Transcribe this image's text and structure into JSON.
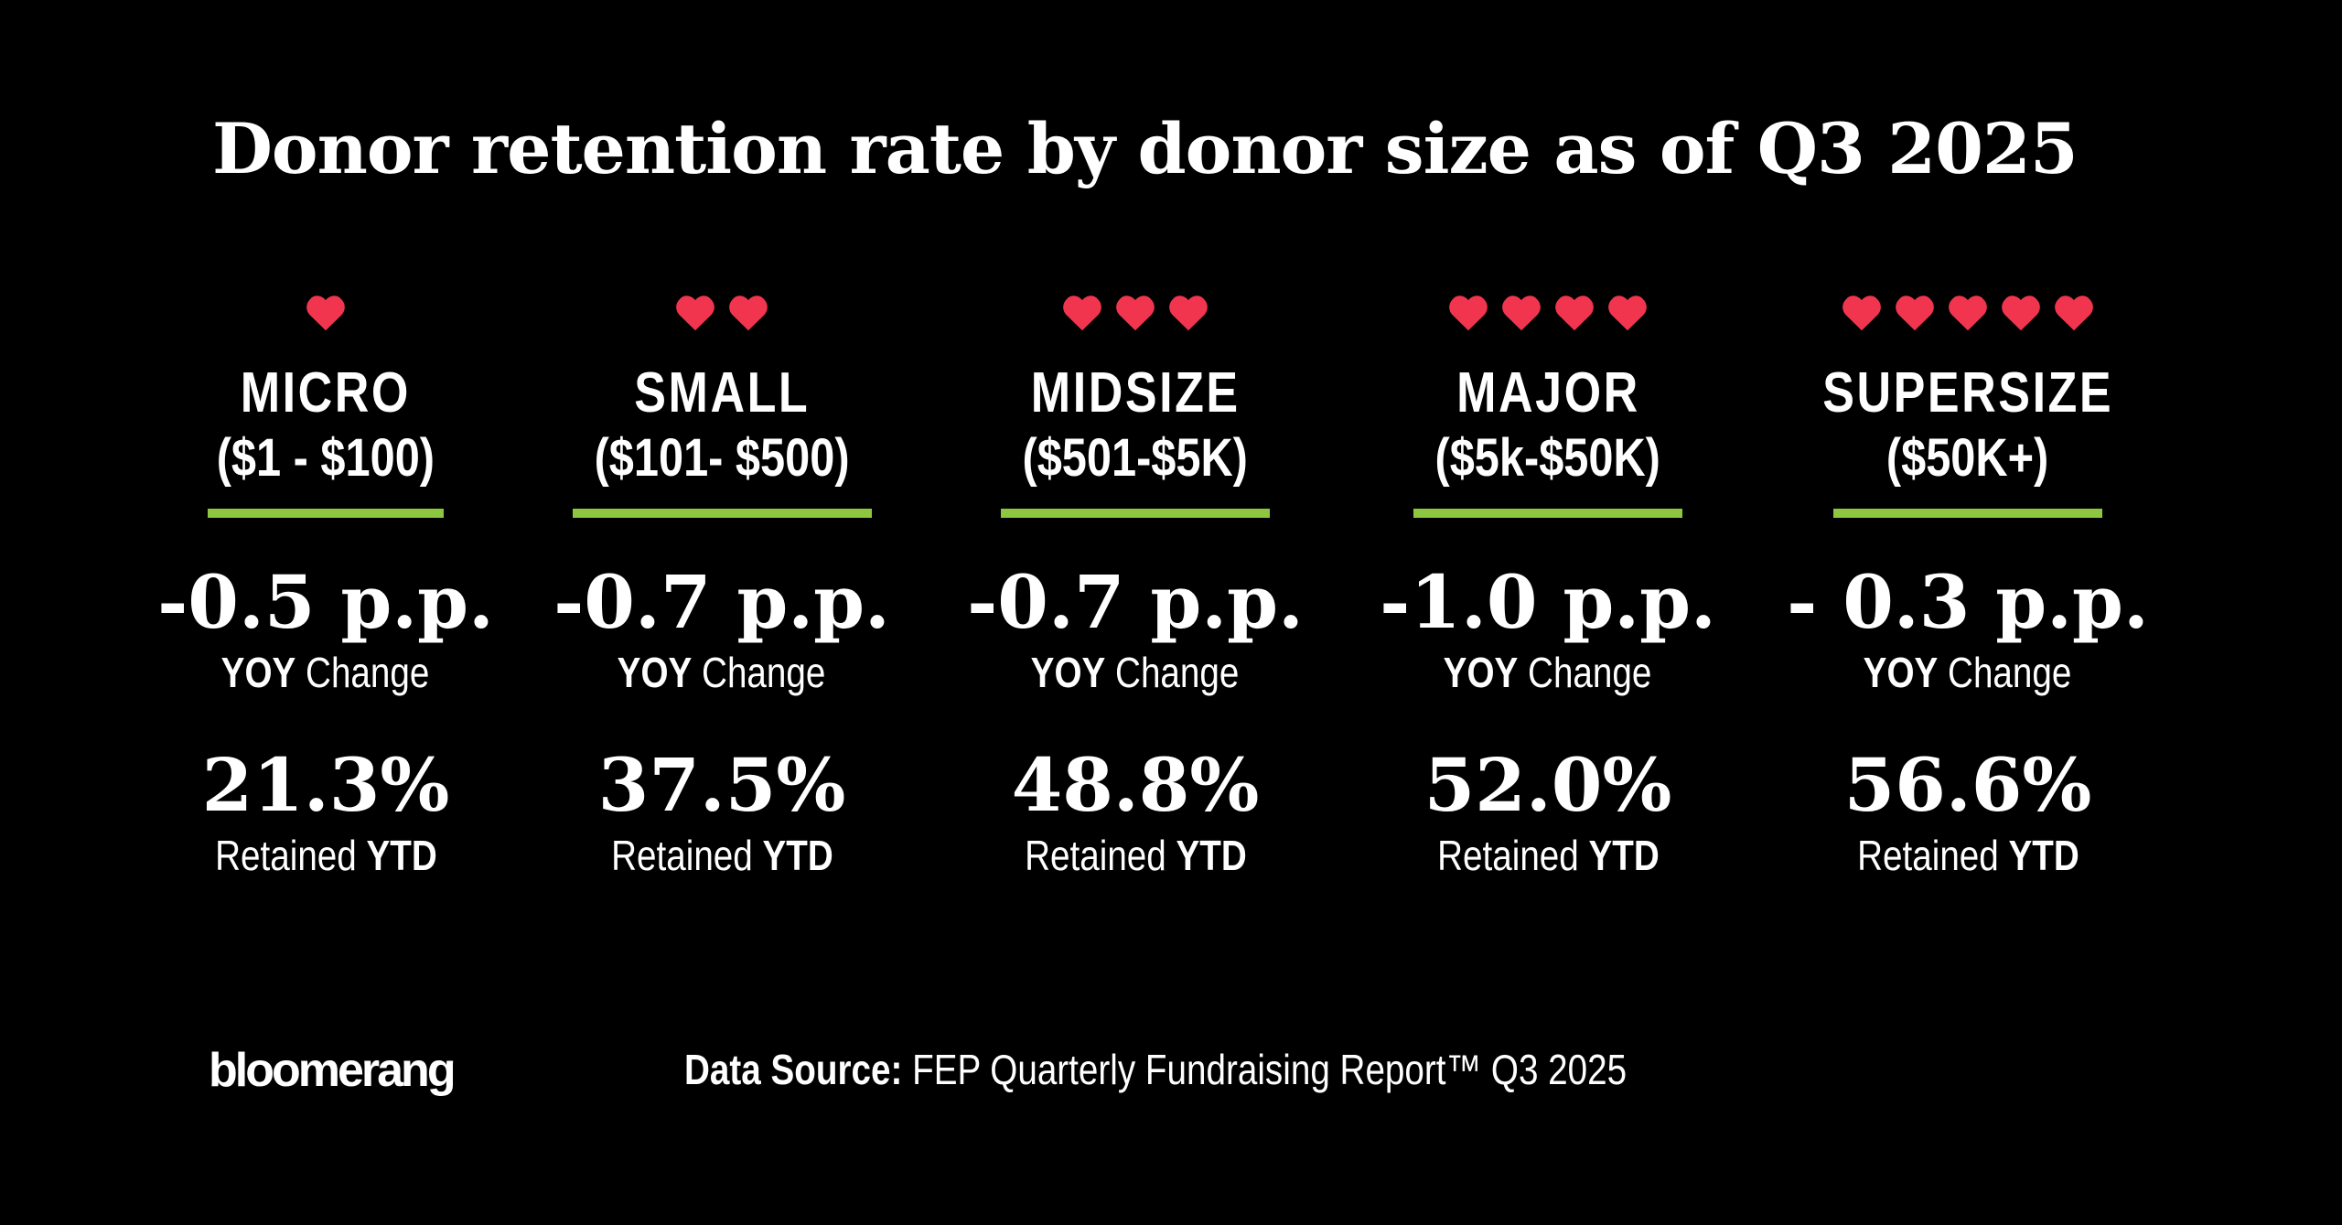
{
  "title": "Donor retention rate by donor size as of Q3 2025",
  "colors": {
    "heart": "#f2354f",
    "underline": "#8dc63f",
    "background": "#000000"
  },
  "columns": [
    {
      "name": "MICRO",
      "range": "($1 - $100)",
      "hearts": 1,
      "yoy_value": "-0.5 p.p.",
      "yoy_bold": "YOY",
      "yoy_label": "Change",
      "retained_value": "21.3%",
      "retained_label": "Retained",
      "retained_bold": "YTD"
    },
    {
      "name": "SMALL",
      "range": "($101- $500)",
      "hearts": 2,
      "yoy_value": "-0.7 p.p.",
      "yoy_bold": "YOY",
      "yoy_label": "Change",
      "retained_value": "37.5%",
      "retained_label": "Retained",
      "retained_bold": "YTD"
    },
    {
      "name": "MIDSIZE",
      "range": "($501-$5K)",
      "hearts": 3,
      "yoy_value": "-0.7 p.p.",
      "yoy_bold": "YOY",
      "yoy_label": "Change",
      "retained_value": "48.8%",
      "retained_label": "Retained",
      "retained_bold": "YTD"
    },
    {
      "name": "MAJOR",
      "range": "($5k-$50K)",
      "hearts": 4,
      "yoy_value": "-1.0 p.p.",
      "yoy_bold": "YOY",
      "yoy_label": "Change",
      "retained_value": "52.0%",
      "retained_label": "Retained",
      "retained_bold": "YTD"
    },
    {
      "name": "SUPERSIZE",
      "range": "($50K+)",
      "hearts": 5,
      "yoy_value": "- 0.3 p.p.",
      "yoy_bold": "YOY",
      "yoy_label": "Change",
      "retained_value": "56.6%",
      "retained_label": "Retained",
      "retained_bold": "YTD"
    }
  ],
  "footer": {
    "logo": "bloomerang",
    "source_label": "Data Source:",
    "source_text": "FEP Quarterly Fundraising Report™ Q3 2025"
  }
}
